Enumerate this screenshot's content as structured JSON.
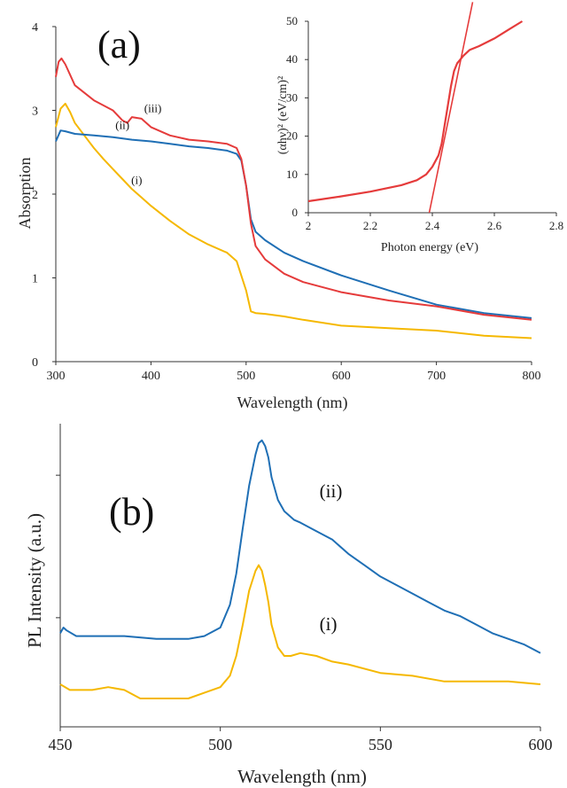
{
  "chart_data": [
    {
      "type": "line",
      "panel_label": "(a)",
      "xlabel": "Wavelength (nm)",
      "ylabel": "Absorption",
      "xlim": [
        300,
        800
      ],
      "ylim": [
        0,
        4
      ],
      "x_ticks": [
        "300",
        "400",
        "500",
        "600",
        "700",
        "800"
      ],
      "y_ticks": [
        "0",
        "1",
        "2",
        "3",
        "4"
      ],
      "series_labels": [
        {
          "text": "(i)",
          "x": 385,
          "y": 2.12
        },
        {
          "text": "(ii)",
          "x": 370,
          "y": 2.78
        },
        {
          "text": "(iii)",
          "x": 402,
          "y": 2.98
        }
      ],
      "series": [
        {
          "name": "(i)",
          "color": "#f5b800",
          "x": [
            300,
            305,
            310,
            315,
            320,
            330,
            340,
            350,
            360,
            370,
            380,
            390,
            400,
            420,
            440,
            460,
            480,
            490,
            500,
            505,
            510,
            520,
            540,
            560,
            600,
            650,
            700,
            750,
            800
          ],
          "y": [
            2.8,
            3.02,
            3.08,
            2.98,
            2.85,
            2.7,
            2.55,
            2.42,
            2.3,
            2.18,
            2.06,
            1.96,
            1.86,
            1.68,
            1.52,
            1.4,
            1.3,
            1.2,
            0.85,
            0.6,
            0.58,
            0.57,
            0.54,
            0.5,
            0.43,
            0.4,
            0.37,
            0.31,
            0.28
          ]
        },
        {
          "name": "(ii)",
          "color": "#1f6fb5",
          "x": [
            300,
            305,
            310,
            320,
            340,
            360,
            380,
            400,
            420,
            440,
            460,
            480,
            490,
            495,
            500,
            505,
            510,
            520,
            540,
            560,
            600,
            650,
            700,
            750,
            800
          ],
          "y": [
            2.63,
            2.76,
            2.75,
            2.72,
            2.7,
            2.68,
            2.65,
            2.63,
            2.6,
            2.57,
            2.55,
            2.52,
            2.48,
            2.4,
            2.1,
            1.7,
            1.55,
            1.45,
            1.3,
            1.2,
            1.03,
            0.85,
            0.68,
            0.58,
            0.52
          ]
        },
        {
          "name": "(iii)",
          "color": "#e53b3b",
          "x": [
            300,
            303,
            306,
            310,
            320,
            340,
            360,
            370,
            375,
            380,
            390,
            400,
            420,
            440,
            460,
            480,
            490,
            495,
            500,
            505,
            510,
            520,
            540,
            560,
            600,
            650,
            700,
            750,
            800
          ],
          "y": [
            3.4,
            3.58,
            3.62,
            3.55,
            3.3,
            3.12,
            3.0,
            2.88,
            2.85,
            2.92,
            2.9,
            2.8,
            2.7,
            2.65,
            2.63,
            2.6,
            2.55,
            2.42,
            2.1,
            1.65,
            1.38,
            1.22,
            1.05,
            0.95,
            0.83,
            0.73,
            0.66,
            0.56,
            0.5
          ]
        }
      ],
      "inset": {
        "type": "line",
        "xlabel": "Photon energy (eV)",
        "ylabel": "(αhν)² (eV/cm)²",
        "xlim": [
          2.0,
          2.8
        ],
        "ylim": [
          0,
          50
        ],
        "x_ticks": [
          "2",
          "2.2",
          "2.4",
          "2.6",
          "2.8"
        ],
        "y_ticks": [
          "0",
          "10",
          "20",
          "30",
          "40",
          "50"
        ],
        "color": "#e53b3b",
        "curve": {
          "x": [
            2.0,
            2.1,
            2.2,
            2.3,
            2.35,
            2.38,
            2.4,
            2.42,
            2.43,
            2.44,
            2.45,
            2.46,
            2.47,
            2.48,
            2.5,
            2.52,
            2.55,
            2.6,
            2.65,
            2.69
          ],
          "y": [
            3.0,
            4.2,
            5.5,
            7.2,
            8.5,
            10.0,
            12.0,
            15.0,
            18.0,
            23.0,
            28.0,
            33.0,
            37.0,
            39.0,
            41.0,
            42.5,
            43.5,
            45.5,
            48.0,
            50.0
          ]
        },
        "fit_line": {
          "x": [
            2.39,
            2.53
          ],
          "y": [
            0,
            55
          ]
        }
      }
    },
    {
      "type": "line",
      "panel_label": "(b)",
      "xlabel": "Wavelength (nm)",
      "ylabel": "PL Intensity (a.u.)",
      "xlim": [
        450,
        600
      ],
      "ylim": [
        0,
        1
      ],
      "x_ticks": [
        "450",
        "500",
        "550",
        "600"
      ],
      "series_labels": [
        {
          "text": "(i)",
          "x": 531,
          "y": 0.34
        },
        {
          "text": "(ii)",
          "x": 531,
          "y": 0.81
        }
      ],
      "series": [
        {
          "name": "(i)",
          "color": "#f5b800",
          "x": [
            450,
            453,
            460,
            465,
            470,
            475,
            480,
            485,
            490,
            495,
            500,
            503,
            505,
            507,
            509,
            511,
            512,
            513,
            514,
            515,
            516,
            518,
            520,
            522,
            525,
            530,
            535,
            540,
            550,
            560,
            570,
            580,
            590,
            600
          ],
          "y": [
            0.15,
            0.13,
            0.13,
            0.14,
            0.13,
            0.1,
            0.1,
            0.1,
            0.1,
            0.12,
            0.14,
            0.18,
            0.25,
            0.36,
            0.48,
            0.55,
            0.57,
            0.55,
            0.5,
            0.44,
            0.36,
            0.28,
            0.25,
            0.25,
            0.26,
            0.25,
            0.23,
            0.22,
            0.19,
            0.18,
            0.16,
            0.16,
            0.16,
            0.15
          ]
        },
        {
          "name": "(ii)",
          "color": "#1f6fb5",
          "x": [
            450,
            451,
            452,
            455,
            460,
            470,
            480,
            485,
            490,
            495,
            500,
            503,
            505,
            507,
            509,
            511,
            512,
            513,
            514,
            515,
            516,
            518,
            520,
            523,
            525,
            530,
            535,
            540,
            545,
            550,
            555,
            560,
            565,
            570,
            575,
            580,
            585,
            590,
            595,
            600
          ],
          "y": [
            0.33,
            0.35,
            0.34,
            0.32,
            0.32,
            0.32,
            0.31,
            0.31,
            0.31,
            0.32,
            0.35,
            0.43,
            0.54,
            0.7,
            0.85,
            0.96,
            1.0,
            1.01,
            0.99,
            0.95,
            0.88,
            0.8,
            0.76,
            0.73,
            0.72,
            0.69,
            0.66,
            0.61,
            0.57,
            0.53,
            0.5,
            0.47,
            0.44,
            0.41,
            0.39,
            0.36,
            0.33,
            0.31,
            0.29,
            0.26
          ]
        }
      ]
    }
  ]
}
